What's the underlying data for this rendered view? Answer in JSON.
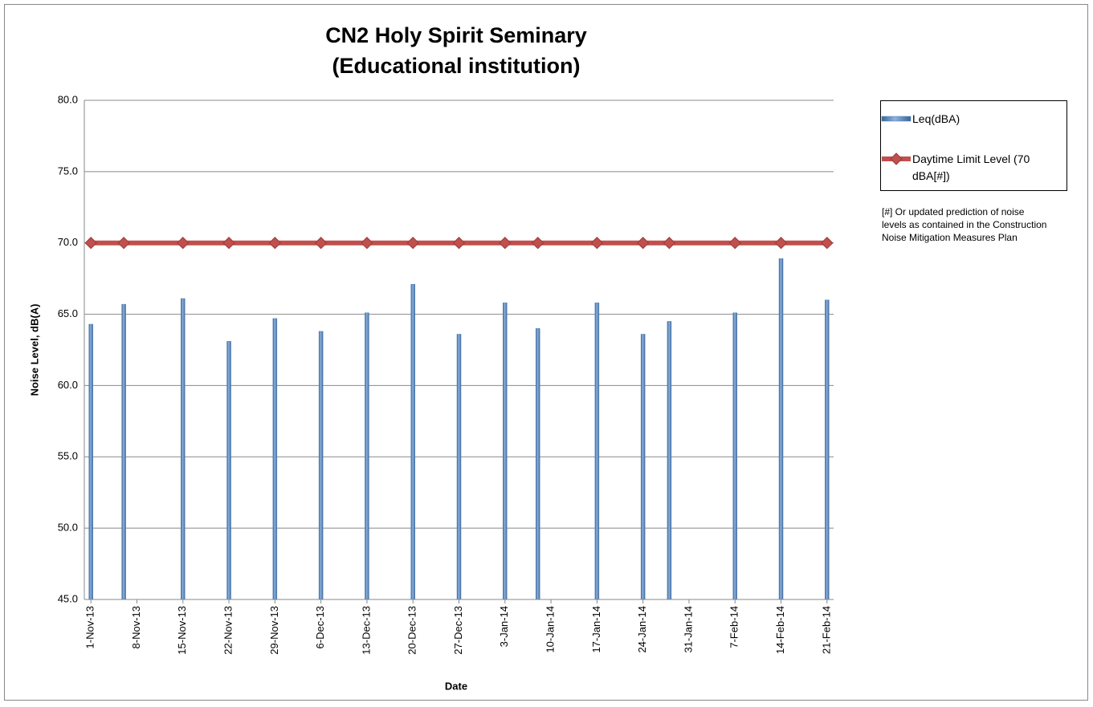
{
  "chart_data": {
    "type": "bar",
    "title": "CN2 Holy Spirit Seminary",
    "subtitle": "(Educational institution)",
    "x_label": "Date",
    "y_label": "Noise Level, dB(A)",
    "note": "[#] Or updated prediction of noise levels as contained in the Construction Noise Mitigation Measures Plan",
    "legend": "right",
    "grid": true,
    "x": [
      "2013-11-01",
      "2013-11-06",
      "2013-11-15",
      "2013-11-22",
      "2013-11-29",
      "2013-12-06",
      "2013-12-13",
      "2013-12-20",
      "2013-12-27",
      "2014-01-03",
      "2014-01-08",
      "2014-01-17",
      "2014-01-24",
      "2014-01-28",
      "2014-02-07",
      "2014-02-14",
      "2014-02-21"
    ],
    "series": [
      {
        "name": "Leq(dBA)",
        "type": "bar",
        "color": "#4f81bd",
        "values": [
          64.3,
          65.7,
          66.1,
          63.1,
          64.7,
          63.8,
          65.1,
          67.1,
          63.6,
          65.8,
          64.0,
          65.8,
          63.6,
          64.5,
          65.1,
          68.9,
          66.0
        ]
      },
      {
        "name": "Daytime Limit Level (70 dBA[#])",
        "type": "line",
        "color": "#c0504d",
        "values": [
          70,
          70,
          70,
          70,
          70,
          70,
          70,
          70,
          70,
          70,
          70,
          70,
          70,
          70,
          70,
          70,
          70
        ]
      }
    ],
    "xlim": [
      "2013-10-31",
      "2014-02-22"
    ],
    "xticks": [
      {
        "value": "2013-11-01",
        "label": "1-Nov-13"
      },
      {
        "value": "2013-11-08",
        "label": "8-Nov-13"
      },
      {
        "value": "2013-11-15",
        "label": "15-Nov-13"
      },
      {
        "value": "2013-11-22",
        "label": "22-Nov-13"
      },
      {
        "value": "2013-11-29",
        "label": "29-Nov-13"
      },
      {
        "value": "2013-12-06",
        "label": "6-Dec-13"
      },
      {
        "value": "2013-12-13",
        "label": "13-Dec-13"
      },
      {
        "value": "2013-12-20",
        "label": "20-Dec-13"
      },
      {
        "value": "2013-12-27",
        "label": "27-Dec-13"
      },
      {
        "value": "2014-01-03",
        "label": "3-Jan-14"
      },
      {
        "value": "2014-01-10",
        "label": "10-Jan-14"
      },
      {
        "value": "2014-01-17",
        "label": "17-Jan-14"
      },
      {
        "value": "2014-01-24",
        "label": "24-Jan-14"
      },
      {
        "value": "2014-01-31",
        "label": "31-Jan-14"
      },
      {
        "value": "2014-02-07",
        "label": "7-Feb-14"
      },
      {
        "value": "2014-02-14",
        "label": "14-Feb-14"
      },
      {
        "value": "2014-02-21",
        "label": "21-Feb-14"
      }
    ],
    "ylim": [
      45,
      80
    ],
    "yticks": [
      {
        "value": 45,
        "label": "45.0"
      },
      {
        "value": 50,
        "label": "50.0"
      },
      {
        "value": 55,
        "label": "55.0"
      },
      {
        "value": 60,
        "label": "60.0"
      },
      {
        "value": 65,
        "label": "65.0"
      },
      {
        "value": 70,
        "label": "70.0"
      },
      {
        "value": 75,
        "label": "75.0"
      },
      {
        "value": 80,
        "label": "80.0"
      }
    ]
  }
}
